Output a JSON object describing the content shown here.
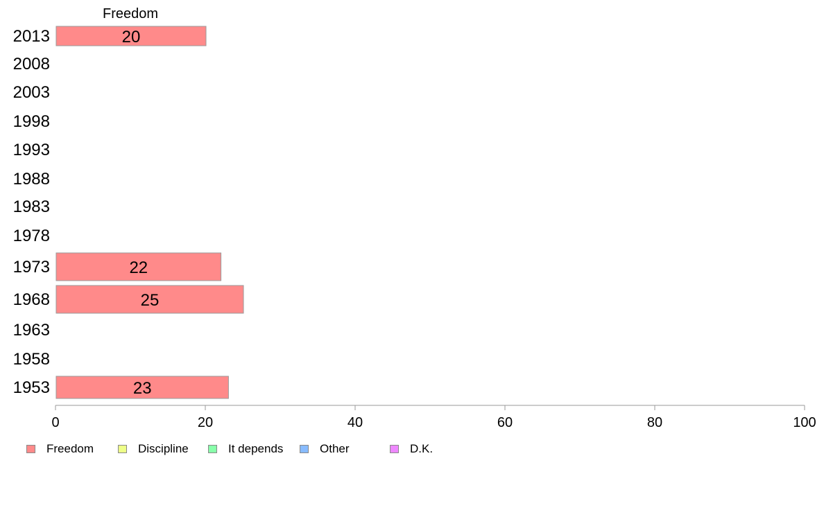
{
  "chart_data": {
    "type": "bar",
    "orientation": "horizontal",
    "stacked": true,
    "series_header": "Freedom",
    "categories": [
      "2013",
      "2008",
      "2003",
      "1998",
      "1993",
      "1988",
      "1983",
      "1978",
      "1973",
      "1968",
      "1963",
      "1958",
      "1953"
    ],
    "series": [
      {
        "name": "Freedom",
        "color": "#FF8A8A",
        "values": [
          20,
          null,
          null,
          null,
          null,
          null,
          null,
          null,
          22,
          25,
          null,
          null,
          23
        ]
      }
    ],
    "xlim": [
      0,
      100
    ],
    "xticks": [
      "0",
      "20",
      "40",
      "60",
      "80",
      "100"
    ],
    "grid": false,
    "legend_position": "bottom",
    "legend": [
      {
        "label": "Freedom",
        "color": "#FF8A8A"
      },
      {
        "label": "Discipline",
        "color": "#EEFF88"
      },
      {
        "label": "It depends",
        "color": "#88FFAA"
      },
      {
        "label": "Other",
        "color": "#88BBFF"
      },
      {
        "label": "D.K.",
        "color": "#EE88FF"
      }
    ]
  }
}
